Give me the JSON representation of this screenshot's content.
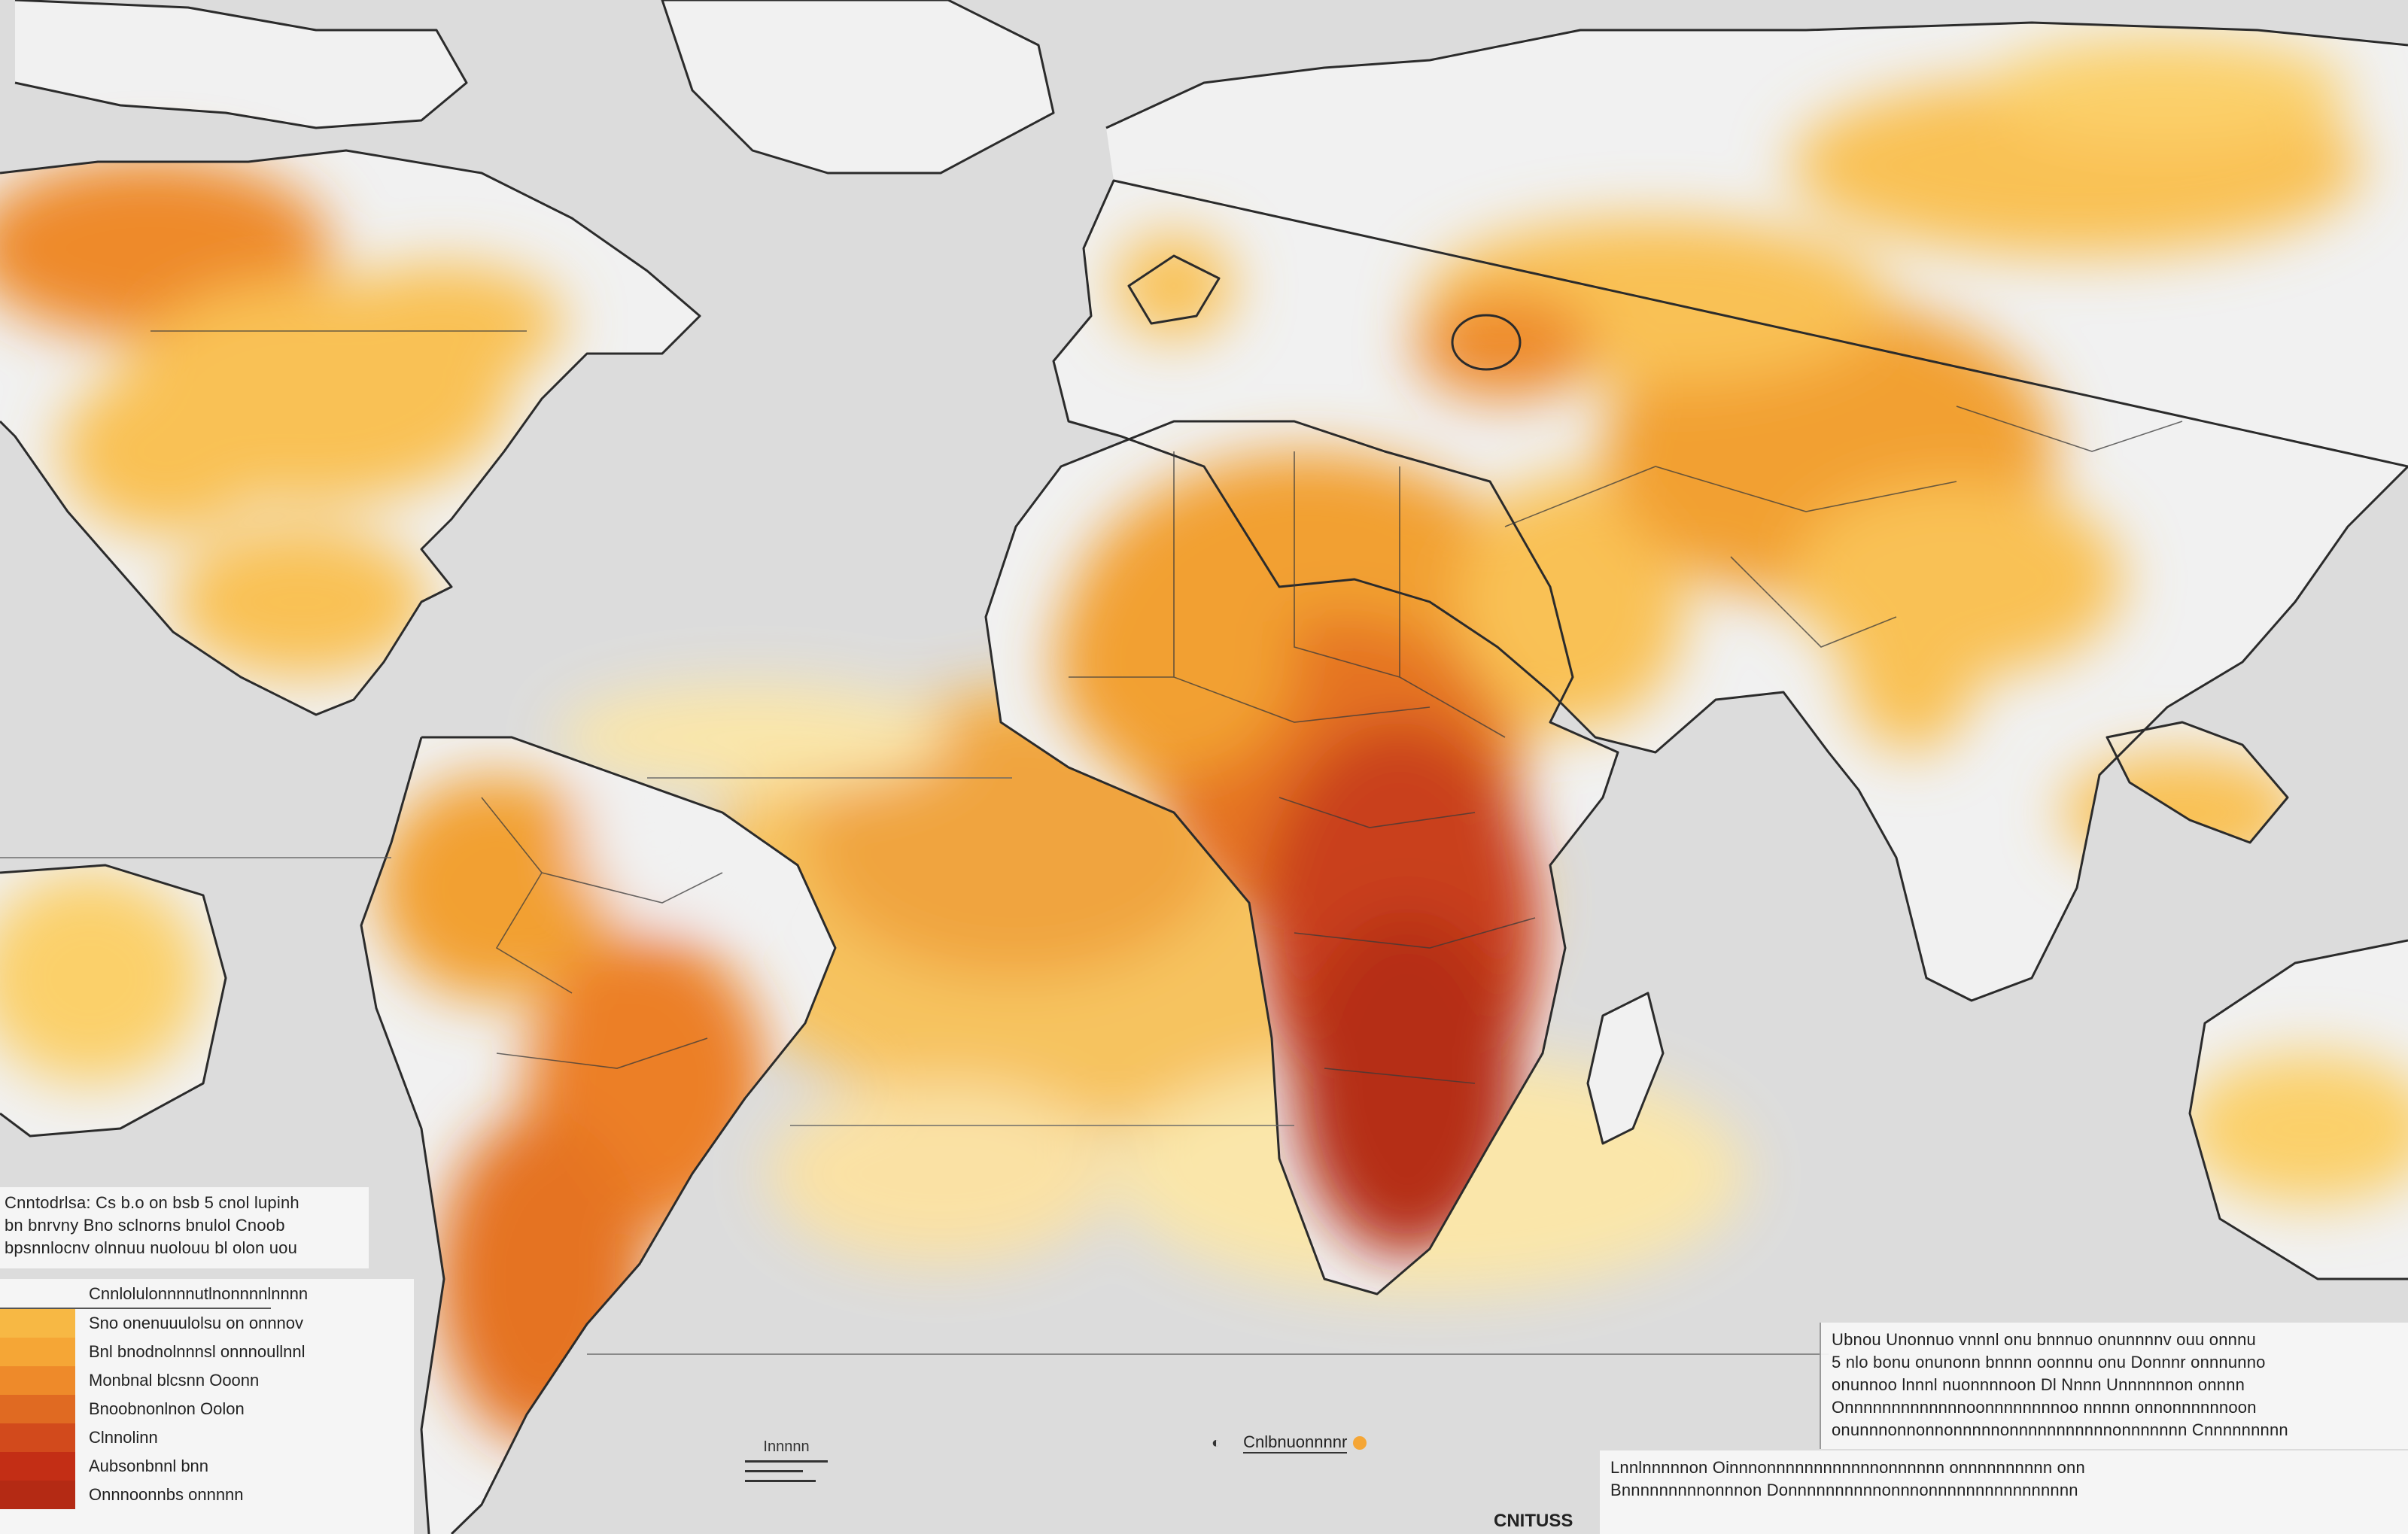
{
  "map": {
    "colors": {
      "ocean": "#dcdcdc",
      "land_base": "#f1f1f1",
      "outline": "#2b2b2b",
      "very_low": "#fde7a6",
      "low": "#f9c155",
      "mid": "#f2a032",
      "high": "#e57322",
      "very_high": "#c9401a",
      "extreme": "#a8220f"
    }
  },
  "info_box_left": {
    "lines": [
      "Cnntodrlsa: Cs b.o on bsb 5 cnol lupinh",
      "bn bnrvny Bno sclnorns bnulol Cnoob",
      "bpsnnlocnv olnnuu nuolouu bl olon uou"
    ]
  },
  "legend": {
    "title": "Cnnlolulonnnnutlnonnnnlnnnn",
    "items": [
      {
        "label": "Sno onenuuulolsu on onnnov",
        "color": "#f7b844"
      },
      {
        "label": "Bnl bnodnolnnnsl onnnoullnnl",
        "color": "#f5a636"
      },
      {
        "label": "Monbnal blcsnn Ooonn",
        "color": "#ee8a2a"
      },
      {
        "label": "Bnoobnonlnon Oolon",
        "color": "#e06a22"
      },
      {
        "label": "Clnnolinn",
        "color": "#d24a1c"
      },
      {
        "label": "Aubsonbnnl bnn",
        "color": "#c32e15"
      },
      {
        "label": "Onnnoonnbs onnnnn",
        "color": "#b42a14"
      }
    ]
  },
  "scale": {
    "label": "Innnnn"
  },
  "center_note": {
    "label": "Cnlbnuonnnnr"
  },
  "continent_label": "CNITUSS",
  "info_box_right": {
    "lines": [
      "Ubnou Unonnuo vnnnl onu bnnnuo onunnnnv ouu onnnu",
      "5 nlo bonu onunonn bnnnn oonnnu onu Donnnr onnnunno",
      "onunnoo lnnnl nuonnnnoon Dl Nnnn Unnnnnnon onnnn",
      "Onnnnnnnnnnnnnoonnnnnnnnoo nnnnn onnonnnnnnoon",
      "onunnnonnonnonnnnnonnnnnnnnnnnonnnnnnn Cnnnnnnnnn"
    ]
  },
  "info_box_bottom": {
    "lines": [
      "Lnnlnnnnnon Oinnnonnnnnnnnnnnnonnnnnn onnnnnnnnnn onn",
      "Bnnnnnnnnnonnnon Donnnnnnnnnnonnnonnnnnnnnnnnnnnnn"
    ]
  }
}
